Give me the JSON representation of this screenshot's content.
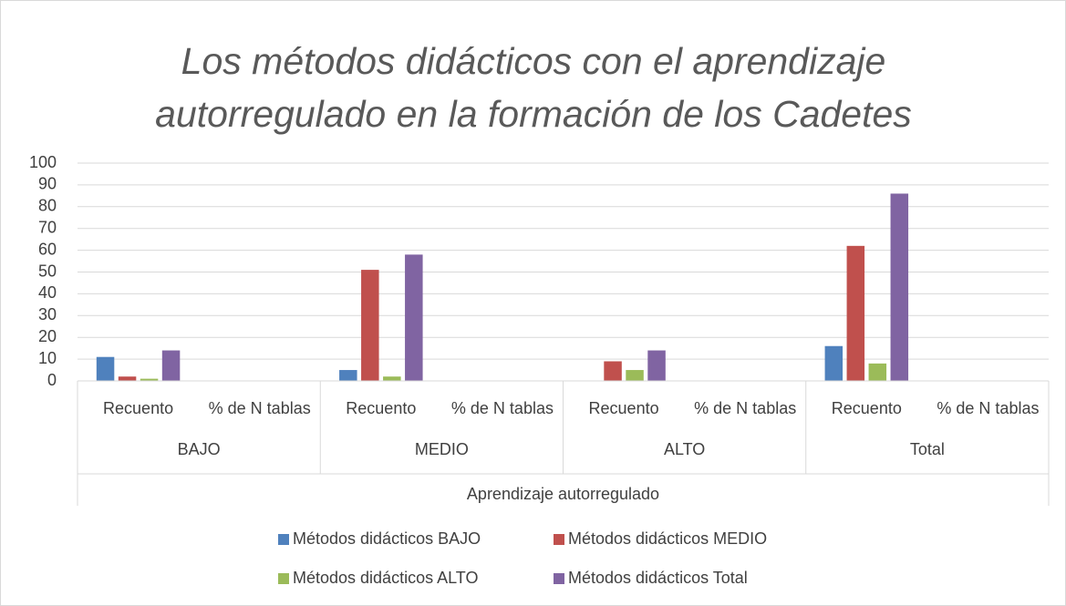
{
  "chart_data": {
    "type": "bar",
    "title": "Los métodos didácticos con el aprendizaje autorregulado en la formación de los Cadetes",
    "categories": [
      "Recuento",
      "% de N tablas",
      "Recuento",
      "% de N tablas",
      "Recuento",
      "% de N tablas",
      "Recuento",
      "% de N tablas"
    ],
    "groups": [
      "BAJO",
      "MEDIO",
      "ALTO",
      "Total"
    ],
    "x_label": "Aprendizaje autorregulado",
    "series": [
      {
        "name": "Métodos didácticos BAJO",
        "color": "#4f81bd",
        "values": [
          11,
          null,
          5,
          null,
          0,
          null,
          16,
          null
        ]
      },
      {
        "name": "Métodos didácticos MEDIO",
        "color": "#c0504d",
        "values": [
          2,
          null,
          51,
          null,
          9,
          null,
          62,
          null
        ]
      },
      {
        "name": "Métodos didácticos ALTO",
        "color": "#9bbb59",
        "values": [
          1,
          null,
          2,
          null,
          5,
          null,
          8,
          null
        ]
      },
      {
        "name": "Métodos didácticos Total",
        "color": "#8064a2",
        "values": [
          14,
          null,
          58,
          null,
          14,
          null,
          86,
          null
        ]
      }
    ],
    "ylim": [
      0,
      100
    ],
    "yticks": [
      0,
      10,
      20,
      30,
      40,
      50,
      60,
      70,
      80,
      90,
      100
    ],
    "grid": true,
    "legend": "bottom"
  }
}
